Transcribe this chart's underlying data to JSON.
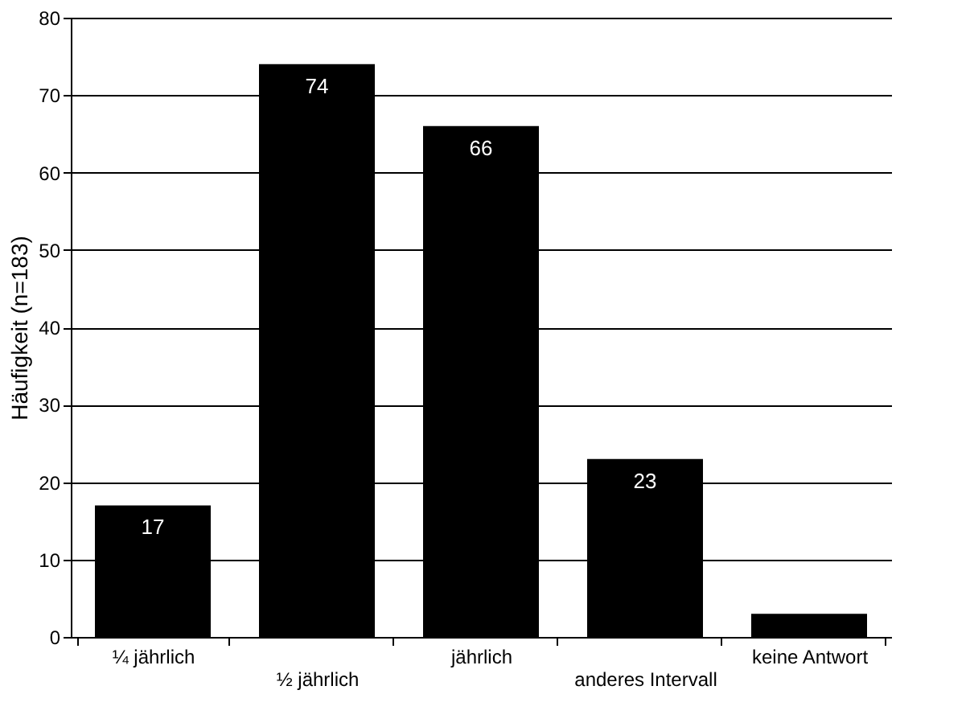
{
  "chart_data": {
    "type": "bar",
    "categories": [
      "¼ jährlich",
      "½ jährlich",
      "jährlich",
      "anderes Intervall",
      "keine Antwort"
    ],
    "values": [
      17,
      74,
      66,
      23,
      3
    ],
    "value_labels": [
      "17",
      "74",
      "66",
      "23",
      null
    ],
    "color": "#000000",
    "ylabel": "Häufigkeit (n=183)",
    "ylim": [
      0,
      80
    ],
    "yticks": [
      0,
      10,
      20,
      30,
      40,
      50,
      60,
      70,
      80
    ],
    "grid": "y"
  }
}
